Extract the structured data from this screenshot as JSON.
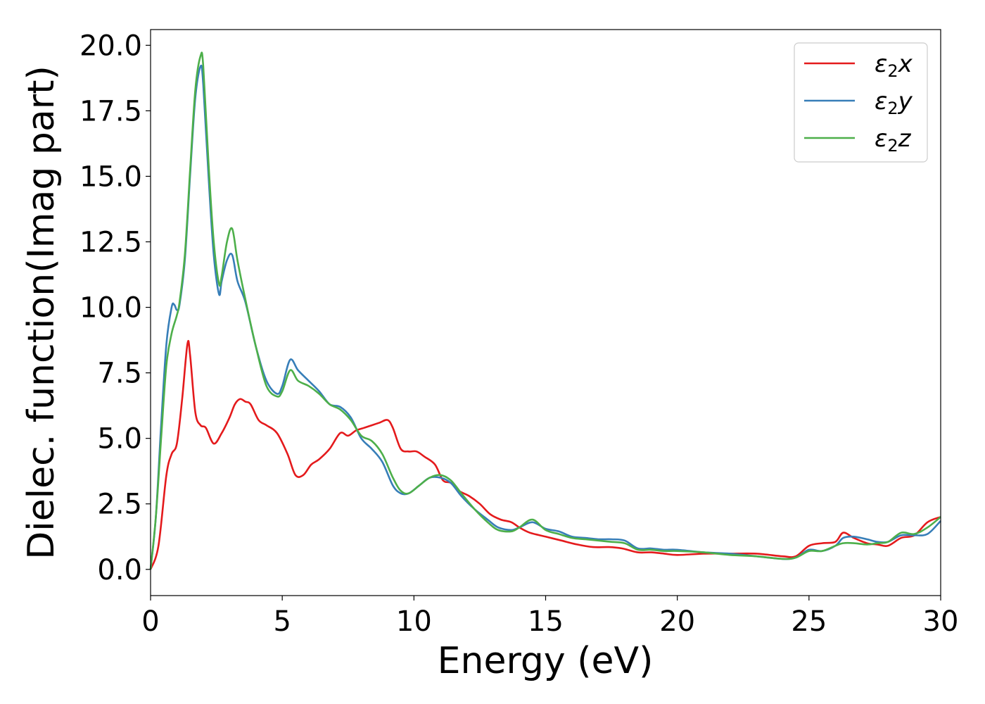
{
  "chart_data": {
    "type": "line",
    "title": "",
    "xlabel": "Energy (eV)",
    "ylabel": "Dielec. function(Imag part)",
    "xlim": [
      0,
      30
    ],
    "ylim": [
      -1.0,
      20.6
    ],
    "xticks": [
      0,
      5,
      10,
      15,
      20,
      25,
      30
    ],
    "xtick_labels": [
      "0",
      "5",
      "10",
      "15",
      "20",
      "25",
      "30"
    ],
    "yticks": [
      0.0,
      2.5,
      5.0,
      7.5,
      10.0,
      12.5,
      15.0,
      17.5,
      20.0
    ],
    "ytick_labels": [
      "0.0",
      "2.5",
      "5.0",
      "7.5",
      "10.0",
      "12.5",
      "15.0",
      "17.5",
      "20.0"
    ],
    "grid": false,
    "legend_position": "top-right",
    "series": [
      {
        "name": "ε2x",
        "legend_base": "ε",
        "legend_sub": "2",
        "legend_var": "x",
        "color": "#e41a1c",
        "x": [
          0,
          0.3,
          0.6,
          0.8,
          1.0,
          1.2,
          1.4,
          1.5,
          1.7,
          1.9,
          2.1,
          2.4,
          2.7,
          3.0,
          3.2,
          3.4,
          3.6,
          3.8,
          4.1,
          4.4,
          4.8,
          5.2,
          5.5,
          5.8,
          6.1,
          6.4,
          6.8,
          7.2,
          7.5,
          7.8,
          8.1,
          8.4,
          8.7,
          9.0,
          9.2,
          9.5,
          9.8,
          10.1,
          10.4,
          10.8,
          11.1,
          11.4,
          11.7,
          12.1,
          12.5,
          12.9,
          13.3,
          13.7,
          14.0,
          14.4,
          15.0,
          15.6,
          16.2,
          16.8,
          17.4,
          17.9,
          18.5,
          19.0,
          19.5,
          20.0,
          21.0,
          22.0,
          23.0,
          24.0,
          24.5,
          25.0,
          25.5,
          26.0,
          26.3,
          26.7,
          27.2,
          27.6,
          28.0,
          28.5,
          29.0,
          29.5,
          30.0
        ],
        "y": [
          0.0,
          0.9,
          3.6,
          4.4,
          4.8,
          6.5,
          8.6,
          8.2,
          6.0,
          5.5,
          5.4,
          4.8,
          5.2,
          5.8,
          6.3,
          6.5,
          6.4,
          6.3,
          5.7,
          5.5,
          5.2,
          4.4,
          3.6,
          3.6,
          4.0,
          4.2,
          4.6,
          5.2,
          5.1,
          5.3,
          5.4,
          5.5,
          5.6,
          5.7,
          5.4,
          4.6,
          4.5,
          4.5,
          4.3,
          4.0,
          3.4,
          3.3,
          3.0,
          2.8,
          2.5,
          2.1,
          1.9,
          1.8,
          1.6,
          1.4,
          1.25,
          1.1,
          0.95,
          0.85,
          0.85,
          0.8,
          0.65,
          0.65,
          0.6,
          0.55,
          0.6,
          0.6,
          0.6,
          0.5,
          0.5,
          0.9,
          1.0,
          1.05,
          1.4,
          1.2,
          1.0,
          0.95,
          0.9,
          1.2,
          1.3,
          1.8,
          2.0
        ]
      },
      {
        "name": "ε2y",
        "legend_base": "ε",
        "legend_sub": "2",
        "legend_var": "y",
        "color": "#377eb8",
        "x": [
          0,
          0.2,
          0.4,
          0.6,
          0.8,
          0.9,
          1.0,
          1.1,
          1.3,
          1.5,
          1.7,
          1.9,
          2.0,
          2.2,
          2.4,
          2.6,
          2.7,
          2.9,
          3.1,
          3.3,
          3.6,
          4.0,
          4.4,
          4.8,
          5.0,
          5.3,
          5.6,
          6.0,
          6.4,
          6.8,
          7.2,
          7.6,
          8.0,
          8.4,
          8.8,
          9.2,
          9.5,
          9.8,
          10.2,
          10.6,
          11.0,
          11.4,
          11.8,
          12.3,
          12.8,
          13.2,
          13.7,
          14.0,
          14.5,
          15.0,
          15.5,
          16.0,
          16.5,
          17.0,
          17.5,
          18.0,
          18.5,
          19.0,
          19.5,
          20.0,
          21.0,
          22.0,
          23.0,
          24.0,
          24.5,
          25.0,
          25.5,
          26.0,
          26.3,
          26.7,
          27.2,
          27.6,
          28.0,
          28.5,
          29.0,
          29.5,
          30.0
        ],
        "y": [
          0.0,
          2.0,
          5.5,
          8.6,
          10.0,
          10.1,
          9.9,
          10.1,
          11.8,
          15.0,
          18.0,
          19.2,
          18.5,
          15.0,
          12.0,
          10.5,
          11.0,
          11.8,
          12.0,
          11.0,
          10.2,
          8.5,
          7.2,
          6.7,
          7.0,
          8.0,
          7.6,
          7.2,
          6.8,
          6.3,
          6.2,
          5.8,
          5.0,
          4.6,
          4.1,
          3.2,
          2.9,
          2.9,
          3.2,
          3.5,
          3.5,
          3.3,
          2.8,
          2.3,
          1.9,
          1.6,
          1.5,
          1.6,
          1.8,
          1.55,
          1.45,
          1.25,
          1.2,
          1.15,
          1.15,
          1.1,
          0.8,
          0.8,
          0.75,
          0.75,
          0.65,
          0.6,
          0.5,
          0.4,
          0.45,
          0.75,
          0.7,
          0.9,
          1.2,
          1.25,
          1.15,
          1.05,
          1.05,
          1.3,
          1.3,
          1.35,
          1.85
        ]
      },
      {
        "name": "ε2z",
        "legend_base": "ε",
        "legend_sub": "2",
        "legend_var": "z",
        "color": "#4daf4a",
        "x": [
          0,
          0.2,
          0.4,
          0.6,
          0.8,
          1.0,
          1.1,
          1.3,
          1.5,
          1.7,
          1.9,
          2.0,
          2.2,
          2.4,
          2.6,
          2.7,
          2.9,
          3.1,
          3.3,
          3.6,
          4.0,
          4.4,
          4.8,
          5.0,
          5.3,
          5.6,
          6.0,
          6.4,
          6.8,
          7.2,
          7.6,
          8.0,
          8.4,
          8.8,
          9.2,
          9.5,
          9.8,
          10.2,
          10.6,
          11.0,
          11.4,
          11.8,
          12.3,
          12.8,
          13.2,
          13.7,
          14.0,
          14.5,
          15.0,
          15.5,
          16.0,
          16.5,
          17.0,
          17.5,
          18.0,
          18.5,
          19.0,
          19.5,
          20.0,
          21.0,
          22.0,
          23.0,
          24.0,
          24.5,
          25.0,
          25.5,
          26.0,
          26.3,
          26.7,
          27.2,
          27.6,
          28.0,
          28.5,
          29.0,
          29.5,
          30.0
        ],
        "y": [
          0.0,
          2.0,
          5.0,
          7.8,
          9.0,
          9.7,
          10.2,
          12.0,
          15.2,
          18.3,
          19.6,
          19.2,
          15.5,
          12.5,
          10.9,
          11.2,
          12.5,
          13.0,
          11.8,
          10.3,
          8.5,
          7.0,
          6.6,
          6.8,
          7.6,
          7.2,
          7.0,
          6.7,
          6.3,
          6.1,
          5.7,
          5.1,
          4.9,
          4.4,
          3.5,
          3.0,
          2.9,
          3.2,
          3.5,
          3.6,
          3.4,
          2.9,
          2.3,
          1.8,
          1.5,
          1.45,
          1.6,
          1.9,
          1.5,
          1.35,
          1.2,
          1.15,
          1.1,
          1.05,
          1.0,
          0.75,
          0.75,
          0.7,
          0.7,
          0.65,
          0.55,
          0.5,
          0.4,
          0.45,
          0.7,
          0.7,
          0.9,
          1.0,
          1.0,
          0.95,
          1.0,
          1.05,
          1.4,
          1.35,
          1.6,
          2.0
        ]
      }
    ]
  }
}
